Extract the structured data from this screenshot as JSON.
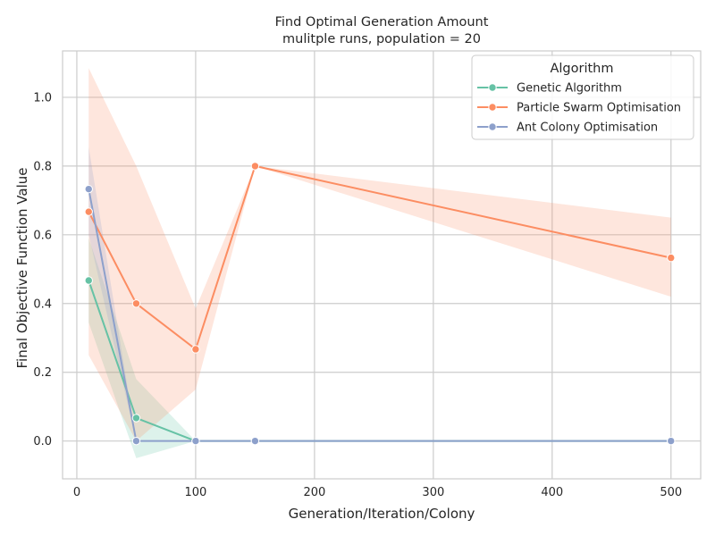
{
  "chart_data": {
    "type": "line",
    "title": "Find Optimal Generation Amount",
    "subtitle": "mulitple runs, population = 20",
    "xlabel": "Generation/Iteration/Colony",
    "ylabel": "Final Objective Function Value",
    "xlim": [
      -12,
      525
    ],
    "ylim": [
      -0.11,
      1.135
    ],
    "xticks": [
      0,
      100,
      200,
      300,
      400,
      500
    ],
    "xtick_labels": [
      "0",
      "100",
      "200",
      "300",
      "400",
      "500"
    ],
    "yticks": [
      0.0,
      0.2,
      0.4,
      0.6,
      0.8,
      1.0
    ],
    "ytick_labels": [
      "0.0",
      "0.2",
      "0.4",
      "0.6",
      "0.8",
      "1.0"
    ],
    "grid": true,
    "legend": {
      "title": "Algorithm",
      "placement": "top-right"
    },
    "series": [
      {
        "name": "Genetic Algorithm",
        "color": "#66c2a5",
        "x": [
          10,
          50,
          100,
          150,
          500
        ],
        "y": [
          0.467,
          0.067,
          0.0,
          0.0,
          0.0
        ],
        "ci_low": [
          0.345,
          -0.05,
          0.0,
          0.0,
          0.0
        ],
        "ci_high": [
          0.59,
          0.18,
          0.0,
          0.0,
          0.0
        ]
      },
      {
        "name": "Particle Swarm Optimisation",
        "color": "#fc8d62",
        "x": [
          10,
          50,
          100,
          150,
          500
        ],
        "y": [
          0.667,
          0.4,
          0.267,
          0.8,
          0.533
        ],
        "ci_low": [
          0.25,
          0.0,
          0.15,
          0.8,
          0.42
        ],
        "ci_high": [
          1.085,
          0.8,
          0.385,
          0.8,
          0.65
        ]
      },
      {
        "name": "Ant Colony Optimisation",
        "color": "#8da0cb",
        "x": [
          10,
          50,
          100,
          150,
          500
        ],
        "y": [
          0.733,
          0.0,
          0.0,
          0.0,
          0.0
        ],
        "ci_low": [
          0.6,
          0.0,
          0.0,
          0.0,
          0.0
        ],
        "ci_high": [
          0.855,
          0.0,
          0.0,
          0.0,
          0.0
        ]
      }
    ]
  }
}
